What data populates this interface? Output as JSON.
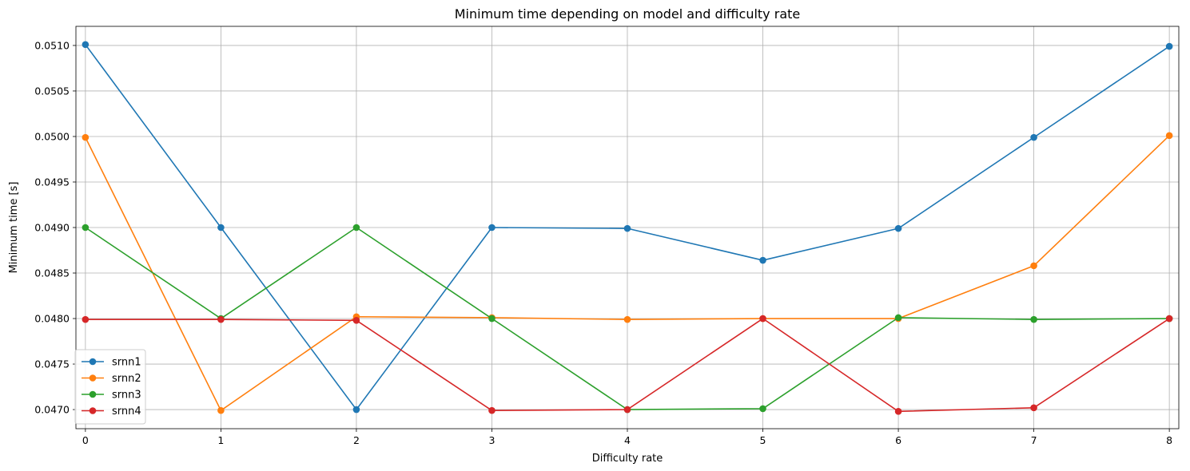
{
  "chart_data": {
    "type": "line",
    "title": "Minimum time depending on model and difficulty rate",
    "xlabel": "Difficulty rate",
    "ylabel": "Minimum time [s]",
    "x": [
      0,
      1,
      2,
      3,
      4,
      5,
      6,
      7,
      8
    ],
    "xlim": [
      -0.07,
      8.07
    ],
    "ylim": [
      0.04679,
      0.05121
    ],
    "xticks": [
      "0",
      "1",
      "2",
      "3",
      "4",
      "5",
      "6",
      "7",
      "8"
    ],
    "yticks": [
      0.047,
      0.0475,
      0.048,
      0.0485,
      0.049,
      0.0495,
      0.05,
      0.0505,
      0.051
    ],
    "ytick_labels": [
      "0.0470",
      "0.0475",
      "0.0480",
      "0.0485",
      "0.0490",
      "0.0495",
      "0.0500",
      "0.0505",
      "0.0510"
    ],
    "grid": true,
    "legend_position": "lower-left",
    "series": [
      {
        "name": "srnn1",
        "color": "#1f77b4",
        "values": [
          0.05101,
          0.049,
          0.047,
          0.049,
          0.04899,
          0.04864,
          0.04899,
          0.04999,
          0.05099
        ]
      },
      {
        "name": "srnn2",
        "color": "#ff7f0e",
        "values": [
          0.04999,
          0.04699,
          0.04802,
          0.04801,
          0.04799,
          0.048,
          0.048,
          0.04858,
          0.05001
        ]
      },
      {
        "name": "srnn3",
        "color": "#2ca02c",
        "values": [
          0.049,
          0.048,
          0.049,
          0.048,
          0.047,
          0.04701,
          0.04801,
          0.04799,
          0.048
        ]
      },
      {
        "name": "srnn4",
        "color": "#d62728",
        "values": [
          0.04799,
          0.04799,
          0.04798,
          0.04699,
          0.047,
          0.048,
          0.04698,
          0.04702,
          0.048
        ]
      }
    ]
  }
}
